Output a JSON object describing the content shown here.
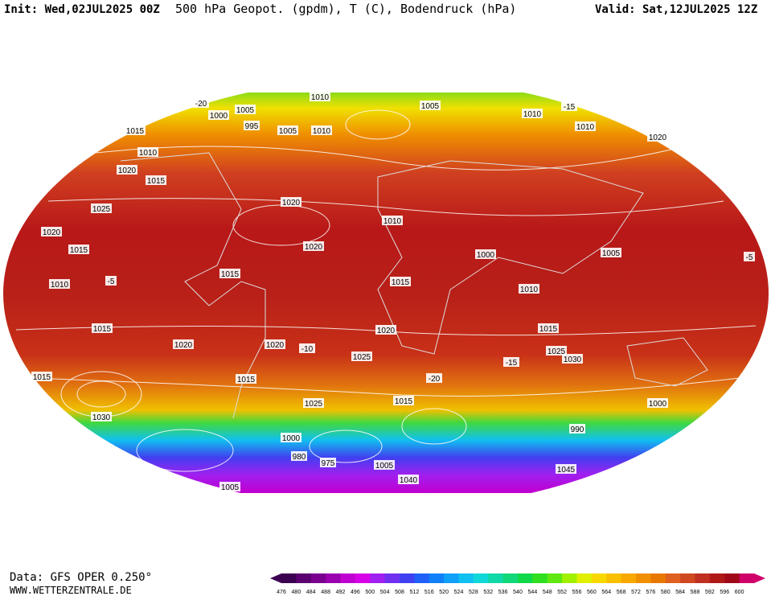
{
  "header": {
    "init": "Init: Wed,02JUL2025 00Z",
    "title": "500 hPa Geopot. (gpdm), T (C), Bodendruck (hPa)",
    "valid": "Valid: Sat,12JUL2025 12Z"
  },
  "map": {
    "labels": [
      "1010",
      "1005",
      "1000",
      "995",
      "1005",
      "1010",
      "1005",
      "1010",
      "1010",
      "1020",
      "1015",
      "1010",
      "1020",
      "1015",
      "1025",
      "1020",
      "1015",
      "1010",
      "1020",
      "1020",
      "1015",
      "1015",
      "1010",
      "1000",
      "1005",
      "1010",
      "1015",
      "1020",
      "1015",
      "1025",
      "1030",
      "1020",
      "1020",
      "1025",
      "1015",
      "1015",
      "1030",
      "1025",
      "1015",
      "1000",
      "980",
      "975",
      "1005",
      "1040",
      "1005",
      "1000",
      "990",
      "1045",
      "-5",
      "-10",
      "-20",
      "-15",
      "-5",
      "-20",
      "-15"
    ]
  },
  "footer": {
    "source": "Data: GFS OPER 0.250°",
    "website": "WWW.WETTERZENTRALE.DE"
  },
  "legend": {
    "levels": [
      476,
      480,
      484,
      488,
      492,
      496,
      500,
      504,
      508,
      512,
      516,
      520,
      524,
      528,
      532,
      536,
      540,
      544,
      548,
      552,
      556,
      560,
      564,
      568,
      572,
      576,
      580,
      584,
      588,
      592,
      596,
      600
    ],
    "colors": [
      "#3c0050",
      "#5a0070",
      "#7a0090",
      "#9a00b0",
      "#c000d0",
      "#d800e8",
      "#a020f0",
      "#7030f0",
      "#4040f0",
      "#2060f8",
      "#1080f8",
      "#10a0f8",
      "#10c0f0",
      "#10d8d8",
      "#10d8a8",
      "#10d878",
      "#10d848",
      "#30e020",
      "#60e810",
      "#a0f000",
      "#e0f000",
      "#f8d800",
      "#f8c000",
      "#f8a800",
      "#f09000",
      "#e87800",
      "#e06020",
      "#d04820",
      "#c03020",
      "#b01818",
      "#a00818",
      "#d0006a"
    ]
  }
}
